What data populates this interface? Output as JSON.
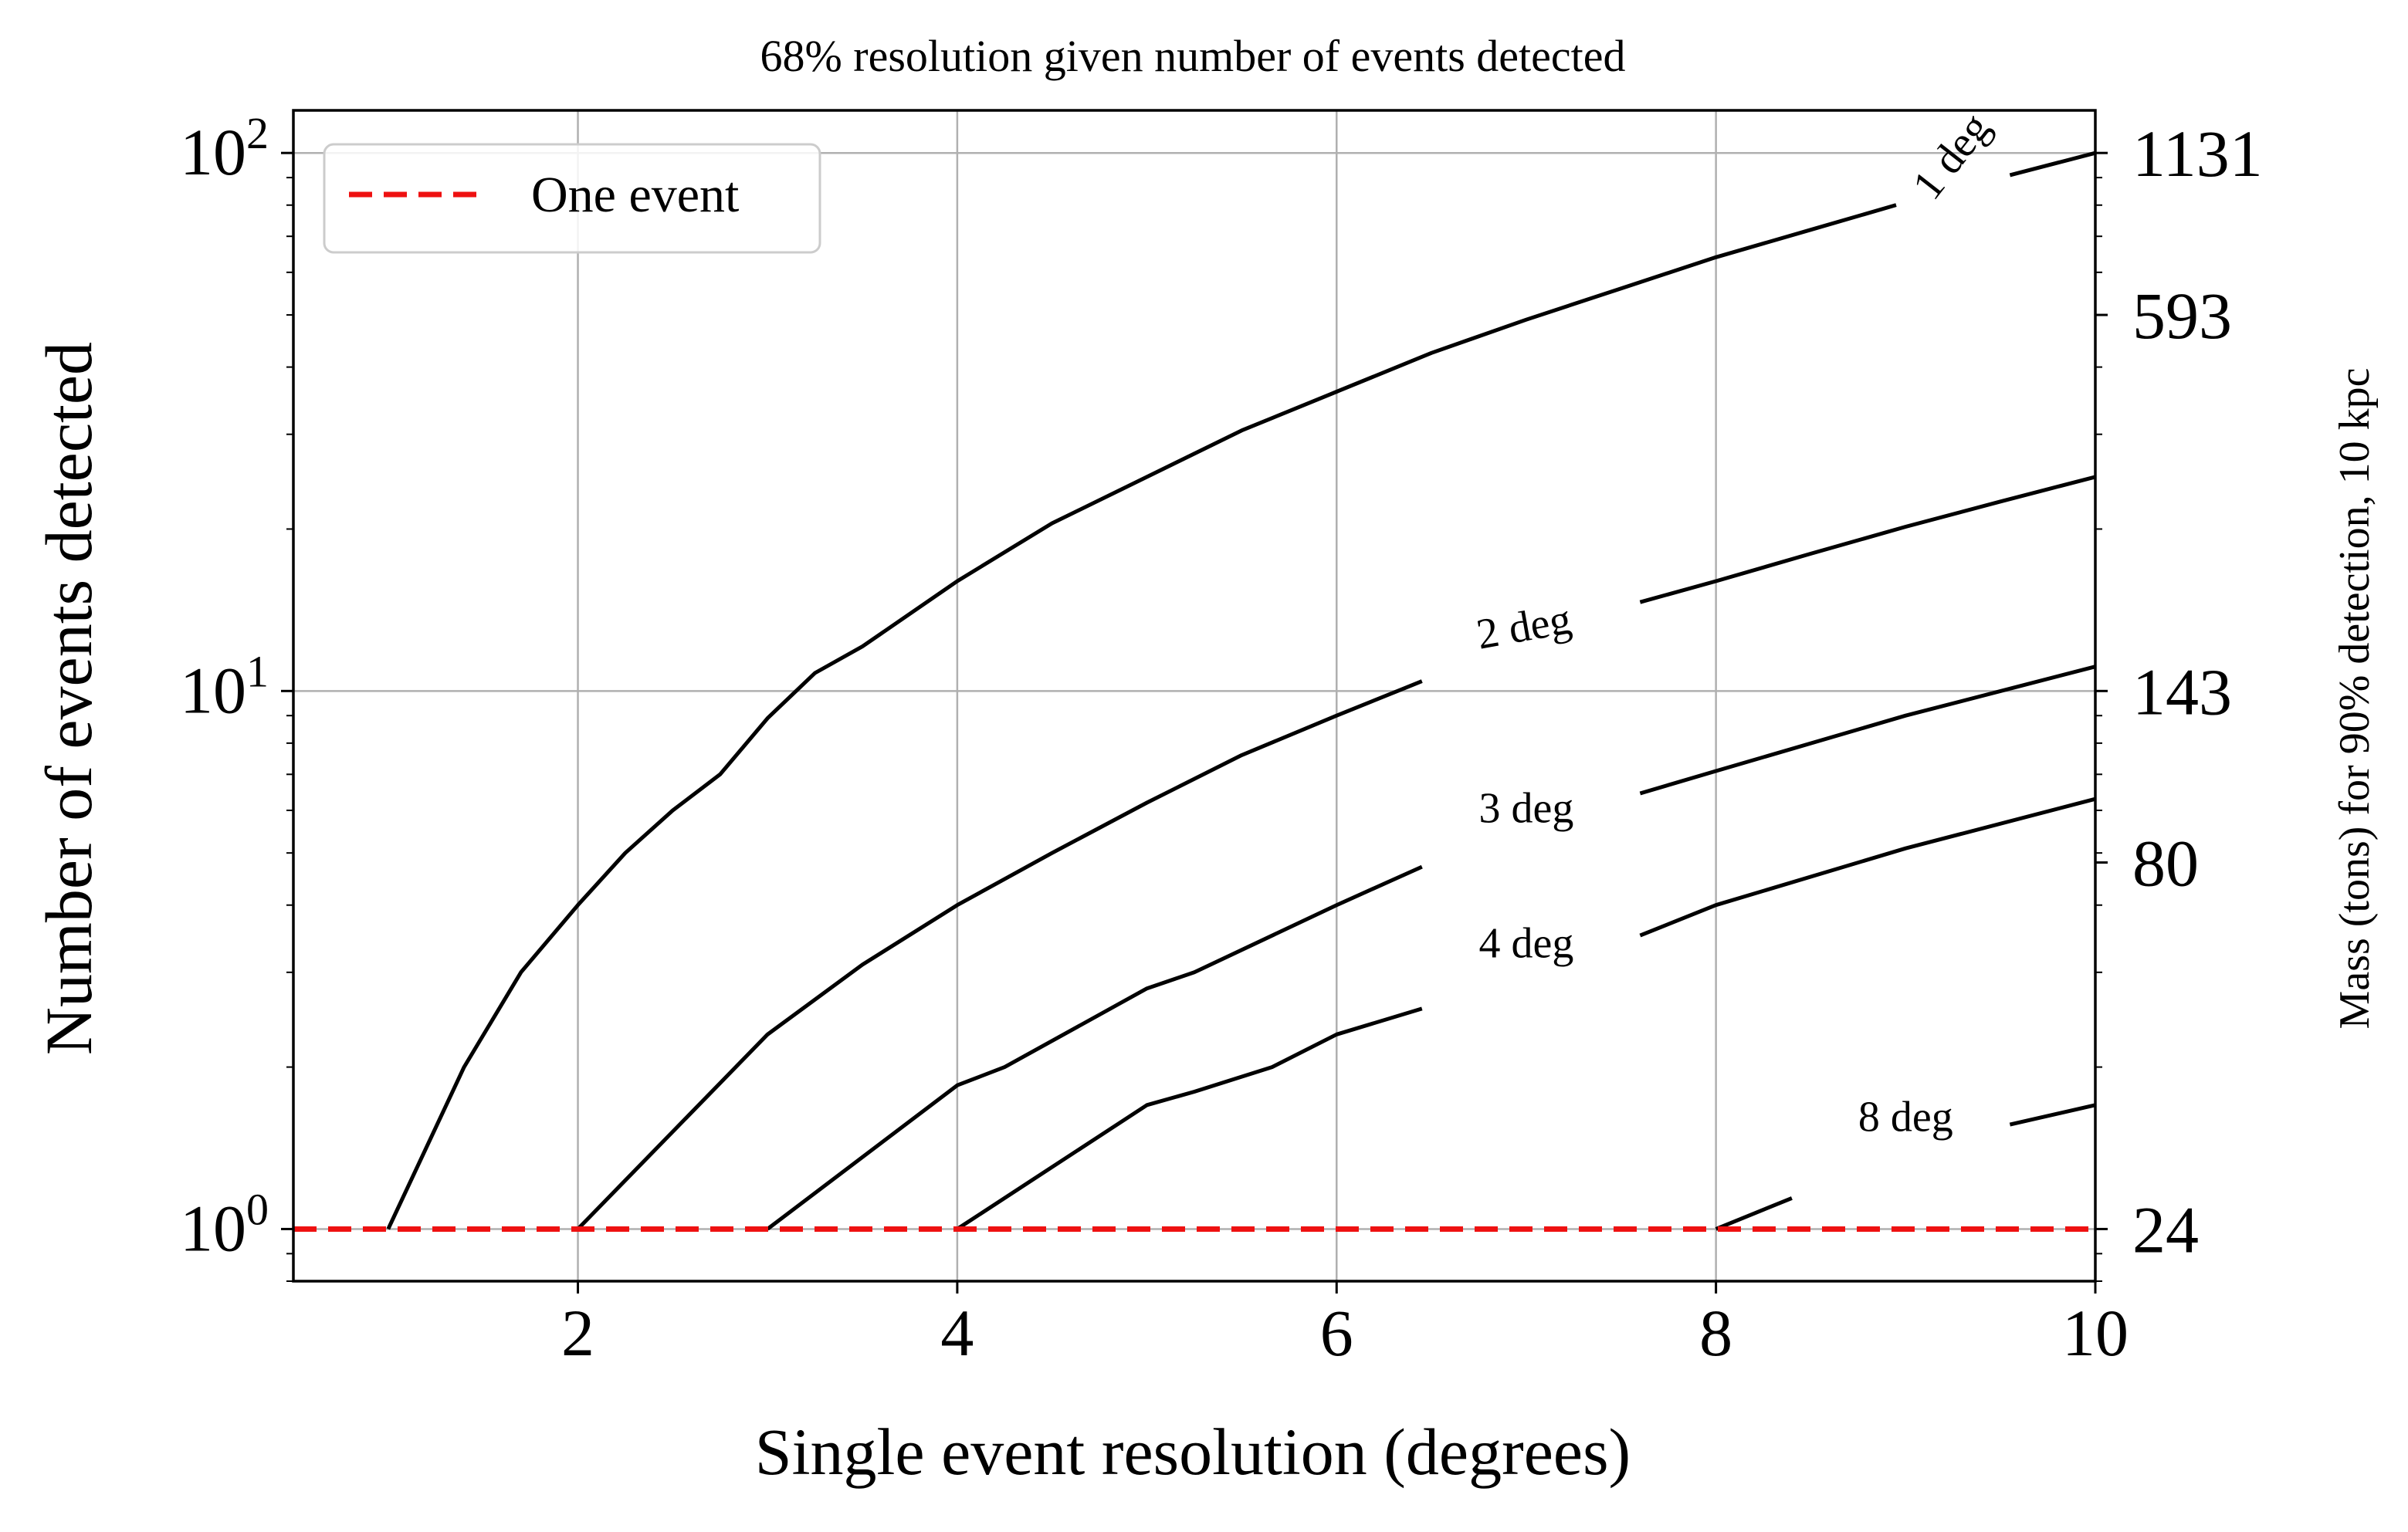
{
  "chart_data": {
    "type": "line",
    "title": "68% resolution given number of events detected",
    "xlabel": "Single event resolution (degrees)",
    "ylabel": "Number of events detected",
    "y2label": "Mass (tons) for 90% detection, 10 kpc",
    "xlim": [
      0.5,
      10
    ],
    "ylim": [
      0.8,
      120
    ],
    "yscale": "log",
    "grid": true,
    "legend_position": "top-left",
    "x_ticks": [
      "2",
      "4",
      "6",
      "8",
      "10"
    ],
    "y_ticks": [
      {
        "value": 1,
        "base": "10",
        "exp": "0"
      },
      {
        "value": 10,
        "base": "10",
        "exp": "1"
      },
      {
        "value": 100,
        "base": "10",
        "exp": "2"
      }
    ],
    "y2_ticks": [
      {
        "value": 1,
        "label": "24"
      },
      {
        "value": 4.8,
        "label": "80"
      },
      {
        "value": 10,
        "label": "143"
      },
      {
        "value": 50,
        "label": "593"
      },
      {
        "value": 100,
        "label": "1131"
      }
    ],
    "reference_line": {
      "name": "One event",
      "y": 1,
      "color": "#ee1111",
      "style": "dashed"
    },
    "contours": [
      {
        "label": "1 deg",
        "x": [
          1.0,
          1.4,
          1.7,
          2.0,
          2.25,
          2.5,
          2.75,
          3.0,
          3.25,
          3.5,
          4.0,
          4.5,
          5.0,
          5.5,
          6.0,
          6.5,
          7.0,
          7.5,
          8.0,
          8.5,
          9.0,
          9.5,
          10.0
        ],
        "y": [
          1.0,
          2.0,
          3.0,
          4.0,
          5.0,
          6.0,
          7.0,
          8.9,
          10.8,
          12.1,
          16.0,
          20.5,
          25.0,
          30.5,
          36.0,
          42.5,
          49.0,
          56.0,
          64.0,
          72.0,
          81.0,
          90.0,
          100.0
        ],
        "gap": [
          8.95,
          9.55
        ],
        "label_pos": [
          9.3,
          95
        ],
        "label_angle": -52
      },
      {
        "label": "2 deg",
        "x": [
          2.0,
          3.0,
          3.5,
          4.0,
          4.5,
          5.0,
          5.5,
          6.0,
          6.5,
          7.0,
          7.5,
          8.0,
          8.5,
          9.0,
          9.5,
          10.0
        ],
        "y": [
          1.0,
          2.3,
          3.1,
          4.0,
          5.0,
          6.2,
          7.6,
          9.0,
          10.6,
          12.4,
          14.3,
          16.0,
          18.0,
          20.2,
          22.5,
          25.0
        ],
        "gap": [
          6.45,
          7.6
        ],
        "label_pos": [
          7.0,
          12.4
        ],
        "label_angle": -10
      },
      {
        "label": "3 deg",
        "x": [
          3.0,
          4.0,
          4.25,
          5.0,
          5.25,
          6.0,
          6.5,
          7.0,
          7.5,
          8.0,
          9.0,
          10.0
        ],
        "y": [
          1.0,
          1.85,
          2.0,
          2.8,
          3.0,
          4.0,
          4.8,
          5.5,
          6.3,
          7.1,
          9.0,
          11.1
        ],
        "gap": [
          6.45,
          7.6
        ],
        "label_pos": [
          7.0,
          5.7
        ],
        "label_angle": 0
      },
      {
        "label": "4 deg",
        "x": [
          4.0,
          5.0,
          5.25,
          5.66,
          6.0,
          6.5,
          7.0,
          7.5,
          8.0,
          9.0,
          10.0
        ],
        "y": [
          1.0,
          1.7,
          1.8,
          2.0,
          2.3,
          2.6,
          3.0,
          3.4,
          4.0,
          5.1,
          6.3
        ],
        "gap": [
          6.45,
          7.6
        ],
        "label_pos": [
          7.0,
          3.2
        ],
        "label_angle": 0
      },
      {
        "label": "8 deg",
        "x": [
          8.0,
          8.5,
          9.0,
          9.5,
          10.0
        ],
        "y": [
          1.0,
          1.18,
          1.35,
          1.55,
          1.7
        ],
        "gap": [
          8.4,
          9.55
        ],
        "label_pos": [
          9.0,
          1.52
        ],
        "label_angle": 0
      }
    ]
  }
}
